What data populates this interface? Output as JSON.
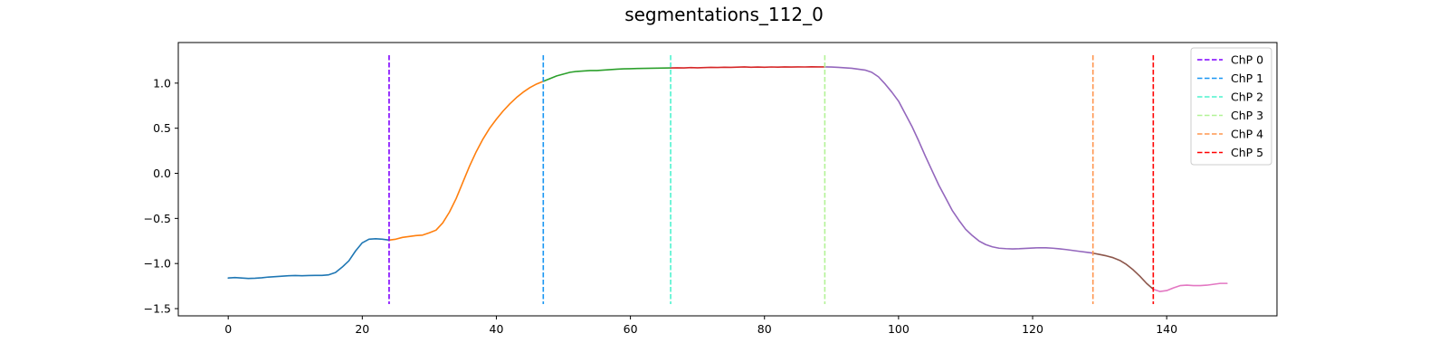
{
  "chart_data": {
    "type": "line",
    "title": "segmentations_112_0",
    "xlabel": "",
    "ylabel": "",
    "xlim": [
      -7.45,
      156.45
    ],
    "ylim": [
      -1.58,
      1.45
    ],
    "x_ticks": [
      0,
      20,
      40,
      60,
      80,
      100,
      120,
      140
    ],
    "y_ticks": [
      -1.5,
      -1.0,
      -0.5,
      0.0,
      0.5,
      1.0
    ],
    "y_tick_labels": [
      "−1.5",
      "−1.0",
      "−0.5",
      "0.0",
      "0.5",
      "1.0"
    ],
    "grid": false,
    "legend_position": "top-right",
    "series": [
      {
        "color": "#1f77b4",
        "points": [
          [
            0,
            -1.16
          ],
          [
            1,
            -1.155
          ],
          [
            2,
            -1.16
          ],
          [
            3,
            -1.165
          ],
          [
            4,
            -1.163
          ],
          [
            5,
            -1.158
          ],
          [
            6,
            -1.15
          ],
          [
            7,
            -1.145
          ],
          [
            8,
            -1.14
          ],
          [
            9,
            -1.135
          ],
          [
            10,
            -1.133
          ],
          [
            11,
            -1.135
          ],
          [
            12,
            -1.133
          ],
          [
            13,
            -1.132
          ],
          [
            14,
            -1.132
          ],
          [
            15,
            -1.125
          ],
          [
            16,
            -1.1
          ],
          [
            17,
            -1.04
          ],
          [
            18,
            -0.97
          ],
          [
            19,
            -0.86
          ],
          [
            20,
            -0.77
          ],
          [
            21,
            -0.73
          ],
          [
            22,
            -0.725
          ],
          [
            23,
            -0.73
          ],
          [
            24,
            -0.74
          ]
        ]
      },
      {
        "color": "#ff7f0e",
        "points": [
          [
            24,
            -0.74
          ],
          [
            25,
            -0.73
          ],
          [
            26,
            -0.71
          ],
          [
            27,
            -0.7
          ],
          [
            28,
            -0.69
          ],
          [
            29,
            -0.685
          ],
          [
            30,
            -0.66
          ],
          [
            31,
            -0.63
          ],
          [
            32,
            -0.55
          ],
          [
            33,
            -0.43
          ],
          [
            34,
            -0.28
          ],
          [
            35,
            -0.1
          ],
          [
            36,
            0.08
          ],
          [
            37,
            0.24
          ],
          [
            38,
            0.38
          ],
          [
            39,
            0.5
          ],
          [
            40,
            0.6
          ],
          [
            41,
            0.69
          ],
          [
            42,
            0.77
          ],
          [
            43,
            0.84
          ],
          [
            44,
            0.9
          ],
          [
            45,
            0.95
          ],
          [
            46,
            0.99
          ],
          [
            47,
            1.02
          ]
        ]
      },
      {
        "color": "#2ca02c",
        "points": [
          [
            47,
            1.02
          ],
          [
            48,
            1.05
          ],
          [
            49,
            1.08
          ],
          [
            50,
            1.1
          ],
          [
            51,
            1.12
          ],
          [
            52,
            1.13
          ],
          [
            53,
            1.135
          ],
          [
            54,
            1.14
          ],
          [
            55,
            1.14
          ],
          [
            56,
            1.145
          ],
          [
            57,
            1.15
          ],
          [
            58,
            1.155
          ],
          [
            59,
            1.158
          ],
          [
            60,
            1.16
          ],
          [
            61,
            1.162
          ],
          [
            62,
            1.163
          ],
          [
            63,
            1.165
          ],
          [
            64,
            1.166
          ],
          [
            65,
            1.167
          ],
          [
            66,
            1.168
          ]
        ]
      },
      {
        "color": "#d62728",
        "points": [
          [
            66,
            1.168
          ],
          [
            67,
            1.17
          ],
          [
            68,
            1.168
          ],
          [
            69,
            1.172
          ],
          [
            70,
            1.17
          ],
          [
            71,
            1.172
          ],
          [
            72,
            1.175
          ],
          [
            73,
            1.173
          ],
          [
            74,
            1.176
          ],
          [
            75,
            1.175
          ],
          [
            76,
            1.177
          ],
          [
            77,
            1.18
          ],
          [
            78,
            1.176
          ],
          [
            79,
            1.178
          ],
          [
            80,
            1.176
          ],
          [
            81,
            1.179
          ],
          [
            82,
            1.177
          ],
          [
            83,
            1.18
          ],
          [
            84,
            1.178
          ],
          [
            85,
            1.18
          ],
          [
            86,
            1.179
          ],
          [
            87,
            1.181
          ],
          [
            88,
            1.18
          ],
          [
            89,
            1.18
          ]
        ]
      },
      {
        "color": "#9467bd",
        "points": [
          [
            89,
            1.18
          ],
          [
            90,
            1.178
          ],
          [
            91,
            1.175
          ],
          [
            92,
            1.17
          ],
          [
            93,
            1.165
          ],
          [
            94,
            1.155
          ],
          [
            95,
            1.145
          ],
          [
            96,
            1.12
          ],
          [
            97,
            1.07
          ],
          [
            98,
            0.99
          ],
          [
            99,
            0.9
          ],
          [
            100,
            0.8
          ],
          [
            101,
            0.66
          ],
          [
            102,
            0.52
          ],
          [
            103,
            0.36
          ],
          [
            104,
            0.19
          ],
          [
            105,
            0.03
          ],
          [
            106,
            -0.13
          ],
          [
            107,
            -0.27
          ],
          [
            108,
            -0.41
          ],
          [
            109,
            -0.52
          ],
          [
            110,
            -0.62
          ],
          [
            111,
            -0.69
          ],
          [
            112,
            -0.75
          ],
          [
            113,
            -0.79
          ],
          [
            114,
            -0.815
          ],
          [
            115,
            -0.83
          ],
          [
            116,
            -0.835
          ],
          [
            117,
            -0.838
          ],
          [
            118,
            -0.836
          ],
          [
            119,
            -0.832
          ],
          [
            120,
            -0.828
          ],
          [
            121,
            -0.825
          ],
          [
            122,
            -0.826
          ],
          [
            123,
            -0.83
          ],
          [
            124,
            -0.837
          ],
          [
            125,
            -0.845
          ],
          [
            126,
            -0.855
          ],
          [
            127,
            -0.865
          ],
          [
            128,
            -0.875
          ],
          [
            129,
            -0.885
          ]
        ]
      },
      {
        "color": "#8c564b",
        "points": [
          [
            129,
            -0.885
          ],
          [
            130,
            -0.9
          ],
          [
            131,
            -0.915
          ],
          [
            132,
            -0.935
          ],
          [
            133,
            -0.965
          ],
          [
            134,
            -1.01
          ],
          [
            135,
            -1.07
          ],
          [
            136,
            -1.14
          ],
          [
            137,
            -1.22
          ],
          [
            138,
            -1.285
          ]
        ]
      },
      {
        "color": "#e377c2",
        "points": [
          [
            138,
            -1.285
          ],
          [
            139,
            -1.31
          ],
          [
            140,
            -1.3
          ],
          [
            141,
            -1.27
          ],
          [
            142,
            -1.245
          ],
          [
            143,
            -1.24
          ],
          [
            144,
            -1.245
          ],
          [
            145,
            -1.245
          ],
          [
            146,
            -1.24
          ],
          [
            147,
            -1.23
          ],
          [
            148,
            -1.22
          ],
          [
            149,
            -1.22
          ]
        ]
      }
    ],
    "changepoints": [
      {
        "name": "ChP 0",
        "x": 24,
        "color": "#7f00ff"
      },
      {
        "name": "ChP 1",
        "x": 47,
        "color": "#1996f3"
      },
      {
        "name": "ChP 2",
        "x": 66,
        "color": "#4df3ce"
      },
      {
        "name": "ChP 3",
        "x": 89,
        "color": "#b2f396"
      },
      {
        "name": "ChP 4",
        "x": 129,
        "color": "#ff964f"
      },
      {
        "name": "ChP 5",
        "x": 138,
        "color": "#ff0000"
      }
    ],
    "changepoint_y_range": [
      -1.45,
      1.31
    ]
  }
}
